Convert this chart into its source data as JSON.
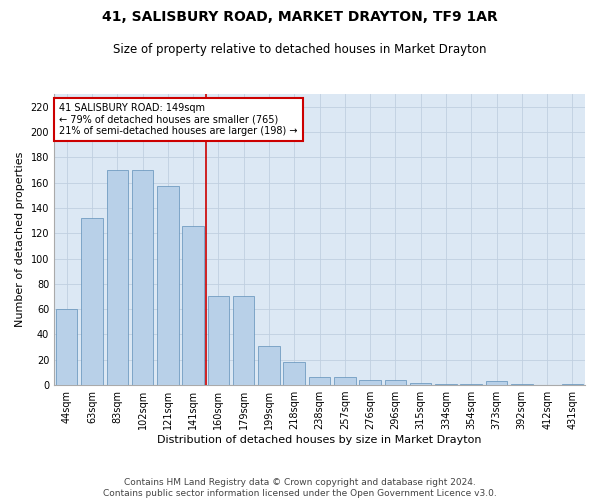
{
  "title": "41, SALISBURY ROAD, MARKET DRAYTON, TF9 1AR",
  "subtitle": "Size of property relative to detached houses in Market Drayton",
  "xlabel": "Distribution of detached houses by size in Market Drayton",
  "ylabel": "Number of detached properties",
  "categories": [
    "44sqm",
    "63sqm",
    "83sqm",
    "102sqm",
    "121sqm",
    "141sqm",
    "160sqm",
    "179sqm",
    "199sqm",
    "218sqm",
    "238sqm",
    "257sqm",
    "276sqm",
    "296sqm",
    "315sqm",
    "334sqm",
    "354sqm",
    "373sqm",
    "392sqm",
    "412sqm",
    "431sqm"
  ],
  "values": [
    60,
    132,
    170,
    170,
    157,
    126,
    70,
    70,
    31,
    18,
    6,
    6,
    4,
    4,
    2,
    1,
    1,
    3,
    1,
    0,
    1
  ],
  "bar_color": "#b8d0e8",
  "bar_edge_color": "#6090b8",
  "vline_x": 5.5,
  "vline_color": "#cc0000",
  "annotation_text": "41 SALISBURY ROAD: 149sqm\n← 79% of detached houses are smaller (765)\n21% of semi-detached houses are larger (198) →",
  "annotation_box_color": "#ffffff",
  "annotation_box_edge": "#cc0000",
  "ylim": [
    0,
    230
  ],
  "yticks": [
    0,
    20,
    40,
    60,
    80,
    100,
    120,
    140,
    160,
    180,
    200,
    220
  ],
  "grid_color": "#c0cfe0",
  "background_color": "#dce8f4",
  "footer": "Contains HM Land Registry data © Crown copyright and database right 2024.\nContains public sector information licensed under the Open Government Licence v3.0.",
  "title_fontsize": 10,
  "subtitle_fontsize": 8.5,
  "xlabel_fontsize": 8,
  "ylabel_fontsize": 8,
  "tick_fontsize": 7,
  "footer_fontsize": 6.5,
  "figwidth": 6.0,
  "figheight": 5.0,
  "dpi": 100
}
